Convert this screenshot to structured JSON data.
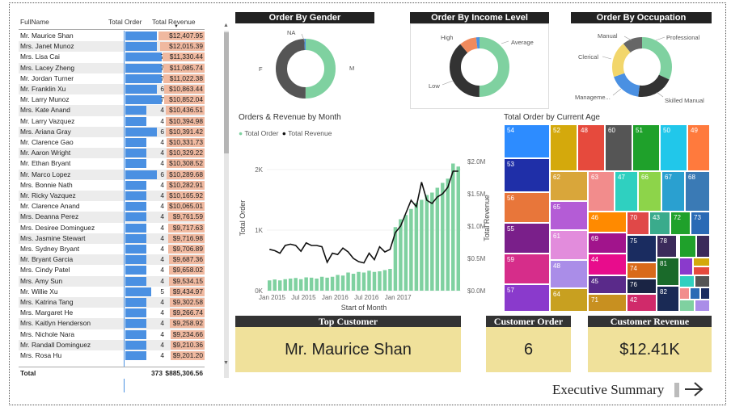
{
  "table": {
    "headers": {
      "name": "FullName",
      "orders": "Total Order",
      "revenue": "Total Revenue"
    },
    "rows": [
      {
        "name": "Mr. Maurice Shan",
        "orders": 6,
        "revenue": "$12,407.95"
      },
      {
        "name": "Mrs. Janet Munoz",
        "orders": 6,
        "revenue": "$12,015.39"
      },
      {
        "name": "Mrs. Lisa Cai",
        "orders": 7,
        "revenue": "$11,330.44"
      },
      {
        "name": "Mrs. Lacey Zheng",
        "orders": 7,
        "revenue": "$11,085.74"
      },
      {
        "name": "Mr. Jordan Turner",
        "orders": 7,
        "revenue": "$11,022.38"
      },
      {
        "name": "Mr. Franklin Xu",
        "orders": 6,
        "revenue": "$10,863.44"
      },
      {
        "name": "Mr. Larry Munoz",
        "orders": 7,
        "revenue": "$10,852.04"
      },
      {
        "name": "Mrs. Kate Anand",
        "orders": 4,
        "revenue": "$10,436.51"
      },
      {
        "name": "Mr. Larry Vazquez",
        "orders": 4,
        "revenue": "$10,394.98"
      },
      {
        "name": "Mrs. Ariana Gray",
        "orders": 6,
        "revenue": "$10,391.42"
      },
      {
        "name": "Mr. Clarence Gao",
        "orders": 4,
        "revenue": "$10,331.73"
      },
      {
        "name": "Mr. Aaron Wright",
        "orders": 4,
        "revenue": "$10,329.22"
      },
      {
        "name": "Mr. Ethan Bryant",
        "orders": 4,
        "revenue": "$10,308.52"
      },
      {
        "name": "Mr. Marco Lopez",
        "orders": 6,
        "revenue": "$10,289.68"
      },
      {
        "name": "Mrs. Bonnie Nath",
        "orders": 4,
        "revenue": "$10,282.91"
      },
      {
        "name": "Mr. Ricky Vazquez",
        "orders": 4,
        "revenue": "$10,165.92"
      },
      {
        "name": "Mr. Clarence Anand",
        "orders": 4,
        "revenue": "$10,065.01"
      },
      {
        "name": "Mrs. Deanna Perez",
        "orders": 4,
        "revenue": "$9,761.59"
      },
      {
        "name": "Mrs. Desiree Dominguez",
        "orders": 4,
        "revenue": "$9,717.63"
      },
      {
        "name": "Mrs. Jasmine Stewart",
        "orders": 4,
        "revenue": "$9,716.98"
      },
      {
        "name": "Mrs. Sydney Bryant",
        "orders": 4,
        "revenue": "$9,706.89"
      },
      {
        "name": "Mr. Bryant Garcia",
        "orders": 4,
        "revenue": "$9,687.36"
      },
      {
        "name": "Mrs. Cindy Patel",
        "orders": 4,
        "revenue": "$9,658.02"
      },
      {
        "name": "Mrs. Amy Sun",
        "orders": 4,
        "revenue": "$9,534.15"
      },
      {
        "name": "Mr. Willie Xu",
        "orders": 5,
        "revenue": "$9,434.97"
      },
      {
        "name": "Mrs. Katrina Tang",
        "orders": 4,
        "revenue": "$9,302.58"
      },
      {
        "name": "Mrs. Margaret He",
        "orders": 4,
        "revenue": "$9,266.74"
      },
      {
        "name": "Mrs. Kaitlyn Henderson",
        "orders": 4,
        "revenue": "$9,258.92"
      },
      {
        "name": "Mrs. Nichole Nara",
        "orders": 4,
        "revenue": "$9,234.66"
      },
      {
        "name": "Mr. Randall Dominguez",
        "orders": 4,
        "revenue": "$9,210.36"
      },
      {
        "name": "Mrs. Rosa Hu",
        "orders": 4,
        "revenue": "$9,201.20"
      }
    ],
    "total": {
      "label": "Total",
      "orders": "373",
      "revenue": "$885,306.56"
    }
  },
  "gender": {
    "title": "Order By Gender",
    "labels": {
      "na": "NA",
      "f": "F",
      "m": "M"
    },
    "colors": [
      "#7fd1a0",
      "#555555",
      "#4a90e2"
    ]
  },
  "income": {
    "title": "Order By Income Level",
    "labels": {
      "high": "High",
      "average": "Average",
      "low": "Low"
    },
    "colors": [
      "#7fd1a0",
      "#333333",
      "#f08a5d",
      "#4a90e2"
    ]
  },
  "occupation": {
    "title": "Order By Occupation",
    "labels": {
      "manual": "Manual",
      "professional": "Professional",
      "clerical": "Clerical",
      "management": "Manageme...",
      "skilled": "Skilled Manual"
    },
    "colors": [
      "#7fd1a0",
      "#333333",
      "#4a90e2",
      "#f2d66b",
      "#666666"
    ]
  },
  "chart_data": {
    "type": "line",
    "title": "Orders & Revenue by Month",
    "legend": [
      "Total Order",
      "Total Revenue"
    ],
    "xlabel": "Start of Month",
    "ylabel_left": "Total Order",
    "ylabel_right": "Total Revenue",
    "x_ticks": [
      "Jan 2015",
      "Jul 2015",
      "Jan 2016",
      "Jul 2016",
      "Jan 2017"
    ],
    "y_left_ticks": [
      "0K",
      "1K",
      "2K"
    ],
    "y_right_ticks": [
      "$0.0M",
      "$0.5M",
      "$1.0M",
      "$1.5M",
      "$2.0M"
    ],
    "series": [
      {
        "name": "Total Order",
        "values": [
          170,
          185,
          170,
          190,
          200,
          210,
          190,
          220,
          215,
          200,
          230,
          215,
          230,
          260,
          250,
          300,
          280,
          310,
          300,
          330,
          310,
          320,
          340,
          360,
          1050,
          1180,
          1250,
          1350,
          1450,
          1500,
          1580,
          1620,
          1700,
          1780,
          1850,
          2100,
          2050
        ]
      },
      {
        "name": "Total Revenue",
        "values": [
          0.64,
          0.62,
          0.58,
          0.7,
          0.72,
          0.7,
          0.61,
          0.74,
          0.7,
          0.7,
          0.68,
          0.44,
          0.58,
          0.56,
          0.66,
          0.6,
          0.5,
          0.45,
          0.43,
          0.58,
          0.48,
          0.68,
          0.6,
          0.64,
          0.9,
          1.0,
          1.2,
          1.4,
          1.3,
          1.68,
          1.4,
          1.35,
          1.45,
          1.5,
          1.6,
          1.85,
          1.85
        ]
      }
    ]
  },
  "treemap": {
    "title": "Total Order by Current Age",
    "cells": [
      {
        "label": "54",
        "color": "#2d8cff"
      },
      {
        "label": "52",
        "color": "#d4a90c"
      },
      {
        "label": "48",
        "color": "#e64a3d"
      },
      {
        "label": "60",
        "color": "#555555"
      },
      {
        "label": "51",
        "color": "#1fa12b"
      },
      {
        "label": "50",
        "color": "#21c7ea"
      },
      {
        "label": "49",
        "color": "#ff7a3d"
      },
      {
        "label": "53",
        "color": "#1f2fa8"
      },
      {
        "label": "62",
        "color": "#d9a63a"
      },
      {
        "label": "63",
        "color": "#f28c8c"
      },
      {
        "label": "47",
        "color": "#2fd0c0"
      },
      {
        "label": "66",
        "color": "#8dd44a"
      },
      {
        "label": "67",
        "color": "#2aa0d0"
      },
      {
        "label": "68",
        "color": "#3a7ab5"
      },
      {
        "label": "56",
        "color": "#e8763a"
      },
      {
        "label": "65",
        "color": "#b45cd6"
      },
      {
        "label": "46",
        "color": "#ff8a00"
      },
      {
        "label": "70",
        "color": "#e04848"
      },
      {
        "label": "43",
        "color": "#3aab8c"
      },
      {
        "label": "72",
        "color": "#1fa12b"
      },
      {
        "label": "73",
        "color": "#2a6ab5"
      },
      {
        "label": "55",
        "color": "#7a1f8a"
      },
      {
        "label": "61",
        "color": "#e28cdc"
      },
      {
        "label": "69",
        "color": "#a1148c"
      },
      {
        "label": "75",
        "color": "#1a2c60"
      },
      {
        "label": "78",
        "color": "#3b2a5a"
      },
      {
        "label": "59",
        "color": "#d62d8a"
      },
      {
        "label": "48",
        "color": "#aa8de8"
      },
      {
        "label": "44",
        "color": "#e80c8c"
      },
      {
        "label": "74",
        "color": "#d96a1a"
      },
      {
        "label": "57",
        "color": "#8a3acc"
      },
      {
        "label": "64",
        "color": "#c8a020"
      },
      {
        "label": "45",
        "color": "#5a2a8a"
      },
      {
        "label": "76",
        "color": "#1a2444"
      },
      {
        "label": "71",
        "color": "#c89020"
      },
      {
        "label": "42",
        "color": "#d02a6a"
      },
      {
        "label": "81",
        "color": "#1a6a2a"
      },
      {
        "label": "82",
        "color": "#1a2a55"
      }
    ]
  },
  "cards": {
    "top_customer": {
      "title": "Top Customer",
      "value": "Mr. Maurice Shan"
    },
    "customer_order": {
      "title": "Customer Order",
      "value": "6"
    },
    "customer_revenue": {
      "title": "Customer Revenue",
      "value": "$12.41K"
    }
  },
  "footer": {
    "label": "Executive Summary"
  }
}
